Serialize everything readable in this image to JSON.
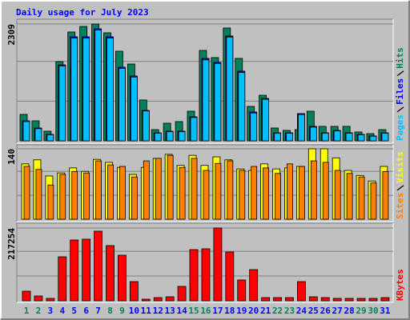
{
  "title": "Daily usage for July 2023",
  "chart_data": [
    {
      "type": "bar",
      "ylim": [
        0,
        2309
      ],
      "yticks": [
        2309
      ],
      "series": [
        {
          "name": "Hits",
          "color": "#00805c",
          "values": [
            522,
            395,
            190,
            1566,
            2151,
            2261,
            2309,
            2135,
            1771,
            1518,
            807,
            221,
            348,
            380,
            585,
            1787,
            1645,
            2230,
            1629,
            680,
            901,
            253,
            206,
            221,
            585,
            285,
            285,
            285,
            174,
            142,
            221
          ]
        },
        {
          "name": "Files",
          "color": "#0000ff",
          "values": [
            395,
            253,
            127,
            1502,
            2056,
            2056,
            2214,
            2056,
            1455,
            1281,
            601,
            158,
            190,
            190,
            474,
            1629,
            1550,
            2072,
            1376,
            569,
            838,
            158,
            158,
            538,
            285,
            158,
            206,
            158,
            127,
            95,
            158
          ]
        },
        {
          "name": "Pages",
          "color": "#00c0ff",
          "values": [
            380,
            240,
            120,
            1480,
            2030,
            2030,
            2190,
            2030,
            1430,
            1260,
            590,
            150,
            180,
            180,
            460,
            1600,
            1530,
            2050,
            1350,
            550,
            820,
            150,
            150,
            520,
            270,
            150,
            195,
            150,
            120,
            90,
            150
          ]
        }
      ]
    },
    {
      "type": "bar",
      "ylim": [
        0,
        140
      ],
      "yticks": [
        140
      ],
      "series": [
        {
          "name": "Visits",
          "color": "#ffff00",
          "values": [
            110,
            118,
            86,
            92,
            102,
            95,
            119,
            113,
            103,
            89,
            103,
            121,
            129,
            107,
            127,
            107,
            124,
            118,
            100,
            97,
            110,
            100,
            102,
            105,
            140,
            140,
            122,
            97,
            87,
            76,
            105
          ]
        },
        {
          "name": "Sites",
          "color": "#ff8000",
          "values": [
            105,
            99,
            68,
            89,
            95,
            92,
            116,
            108,
            105,
            84,
            116,
            121,
            127,
            103,
            121,
            97,
            111,
            116,
            97,
            105,
            102,
            91,
            110,
            105,
            116,
            113,
            97,
            91,
            84,
            72,
            95
          ]
        }
      ]
    },
    {
      "type": "bar",
      "ylim": [
        0,
        217254
      ],
      "yticks": [
        217254
      ],
      "categories": [
        "1",
        "2",
        "3",
        "4",
        "5",
        "6",
        "7",
        "8",
        "9",
        "10",
        "11",
        "12",
        "13",
        "14",
        "15",
        "16",
        "17",
        "18",
        "19",
        "20",
        "21",
        "22",
        "23",
        "24",
        "25",
        "26",
        "27",
        "28",
        "29",
        "30",
        "31"
      ],
      "category_colors": [
        "#00805c",
        "#00805c",
        "#0000ff",
        "#0000ff",
        "#0000ff",
        "#0000ff",
        "#0000ff",
        "#00805c",
        "#00805c",
        "#0000ff",
        "#0000ff",
        "#0000ff",
        "#0000ff",
        "#0000ff",
        "#00805c",
        "#00805c",
        "#0000ff",
        "#0000ff",
        "#0000ff",
        "#0000ff",
        "#0000ff",
        "#00805c",
        "#00805c",
        "#0000ff",
        "#0000ff",
        "#0000ff",
        "#0000ff",
        "#0000ff",
        "#00805c",
        "#00805c",
        "#0000ff"
      ],
      "series": [
        {
          "name": "KBytes",
          "color": "#ff0000",
          "values": [
            28648,
            14324,
            7162,
            131300,
            181436,
            183823,
            207694,
            164723,
            136074,
            57297,
            4775,
            9549,
            11937,
            42973,
            152787,
            155174,
            217254,
            145623,
            62071,
            93105,
            9549,
            9549,
            9549,
            57297,
            11937,
            9549,
            7162,
            7162,
            7162,
            7162,
            9549
          ]
        }
      ]
    }
  ]
}
